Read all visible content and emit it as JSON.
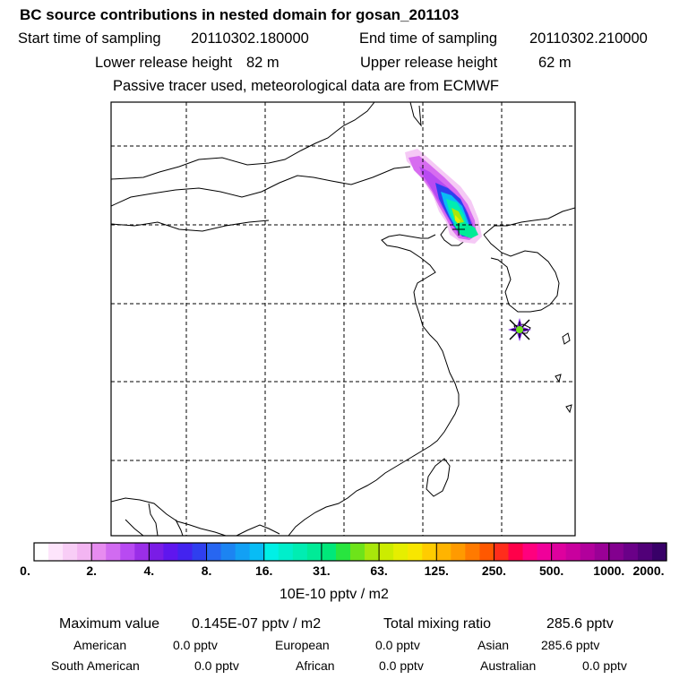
{
  "title": "BC  source contributions in nested domain for gosan_201103",
  "sampling": {
    "start_label": "Start time of sampling",
    "start_value": "20110302.180000",
    "end_label": "End time of sampling",
    "end_value": "20110302.210000"
  },
  "release": {
    "lower_label": "Lower release height",
    "lower_value": "82 m",
    "upper_label": "Upper release height",
    "upper_value": "62 m"
  },
  "note": "Passive tracer used, meteorological data are from ECMWF",
  "map": {
    "region": "East Asia (nested domain)",
    "receptor_marker": "gosan receptor (star)",
    "grid_style": "dashed"
  },
  "colorbar": {
    "tick_labels": [
      "0.",
      "2.",
      "4.",
      "8.",
      "16.",
      "31.",
      "63.",
      "125.",
      "250.",
      "500.",
      "1000.",
      "2000."
    ],
    "colors": [
      "#ffffff",
      "#fde4fb",
      "#f8cdf6",
      "#f3b5f2",
      "#e78cf0",
      "#d16bf1",
      "#b84af2",
      "#9a2ee8",
      "#7a1ce6",
      "#5f16ee",
      "#4323ef",
      "#2f3fef",
      "#2766f1",
      "#1c84f2",
      "#12a0f4",
      "#08bcf5",
      "#00f0e6",
      "#00eecb",
      "#00edb2",
      "#00eb97",
      "#00e87a",
      "#28e53f",
      "#6ee31a",
      "#a9e70b",
      "#ccec00",
      "#e6ee00",
      "#f8e600",
      "#ffcc00",
      "#ffb400",
      "#ff9a00",
      "#ff7a00",
      "#ff5800",
      "#ff2d1b",
      "#ff004a",
      "#ff007e",
      "#f0009a",
      "#de009e",
      "#c9009e",
      "#b2009c",
      "#9a0096",
      "#83008f",
      "#6a0088",
      "#510078",
      "#380068"
    ],
    "unit": "10E-10 pptv / m2"
  },
  "stats": {
    "max_label": "Maximum value",
    "max_value": "0.145E-07 pptv / m2",
    "total_label": "Total mixing ratio",
    "total_value": "285.6 pptv"
  },
  "regions": [
    {
      "name": "American",
      "value": "0.0 pptv"
    },
    {
      "name": "European",
      "value": "0.0 pptv"
    },
    {
      "name": "Asian",
      "value": "285.6 pptv"
    },
    {
      "name": "South American",
      "value": "0.0 pptv"
    },
    {
      "name": "African",
      "value": "0.0 pptv"
    },
    {
      "name": "Australian",
      "value": "0.0 pptv"
    }
  ]
}
